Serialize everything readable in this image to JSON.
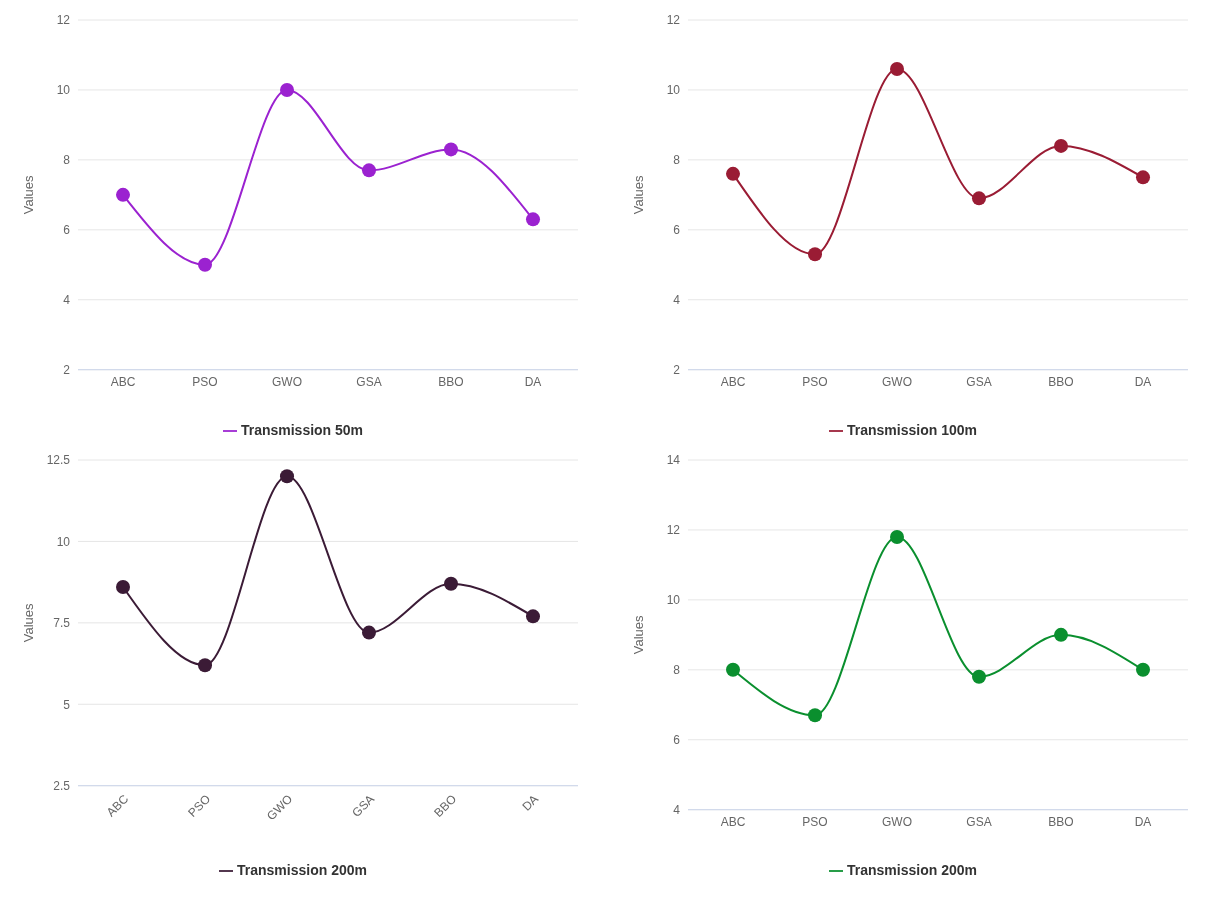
{
  "chart_data": [
    {
      "type": "line",
      "ylabel": "Values",
      "categories": [
        "ABC",
        "PSO",
        "GWO",
        "GSA",
        "BBO",
        "DA"
      ],
      "ylim": [
        2,
        12
      ],
      "yticks": [
        2,
        4,
        6,
        8,
        10,
        12
      ],
      "grid": "y",
      "legend": "bottom",
      "marker": "circle",
      "series": [
        {
          "name": "Transmission 50m",
          "color": "#9b22d0",
          "values": [
            7,
            5,
            10,
            7.7,
            8.3,
            6.3
          ]
        }
      ]
    },
    {
      "type": "line",
      "ylabel": "Values",
      "categories": [
        "ABC",
        "PSO",
        "GWO",
        "GSA",
        "BBO",
        "DA"
      ],
      "ylim": [
        2,
        12
      ],
      "yticks": [
        2,
        4,
        6,
        8,
        10,
        12
      ],
      "grid": "y",
      "legend": "bottom",
      "marker": "circle",
      "series": [
        {
          "name": "Transmission 100m",
          "color": "#9a1c34",
          "values": [
            7.6,
            5.3,
            10.6,
            6.9,
            8.4,
            7.5
          ]
        }
      ]
    },
    {
      "type": "line",
      "ylabel": "Values",
      "categories": [
        "ABC",
        "PSO",
        "GWO",
        "GSA",
        "BBO",
        "DA"
      ],
      "ylim": [
        2.5,
        12.5
      ],
      "yticks": [
        2.5,
        5,
        7.5,
        10,
        12.5
      ],
      "grid": "y",
      "legend": "bottom",
      "marker": "circle",
      "series": [
        {
          "name": "Transmission 200m",
          "color": "#3b1b36",
          "values": [
            8.6,
            6.2,
            12,
            7.2,
            8.7,
            7.7
          ]
        }
      ]
    },
    {
      "type": "line",
      "ylabel": "Values",
      "categories": [
        "ABC",
        "PSO",
        "GWO",
        "GSA",
        "BBO",
        "DA"
      ],
      "ylim": [
        4,
        14
      ],
      "yticks": [
        4,
        6,
        8,
        10,
        12,
        14
      ],
      "grid": "y",
      "legend": "bottom",
      "marker": "circle",
      "series": [
        {
          "name": "Transmission 200m",
          "color": "#0a8f2e",
          "values": [
            8,
            6.7,
            11.8,
            7.8,
            9,
            8
          ]
        }
      ]
    }
  ]
}
